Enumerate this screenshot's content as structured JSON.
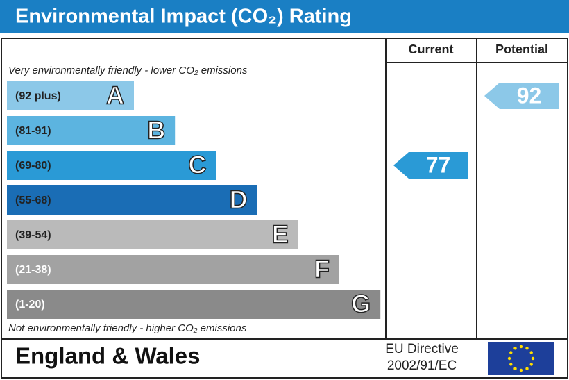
{
  "title": "Environmental Impact (CO₂) Rating",
  "headers": {
    "current": "Current",
    "potential": "Potential"
  },
  "top_note": "Very environmentally friendly - lower CO₂ emissions",
  "bottom_note": "Not environmentally friendly - higher CO₂ emissions",
  "bands": [
    {
      "range": "(92 plus)",
      "letter": "A",
      "color": "#8cc8e8"
    },
    {
      "range": "(81-91)",
      "letter": "B",
      "color": "#5cb4e0"
    },
    {
      "range": "(69-80)",
      "letter": "C",
      "color": "#2a9ad6"
    },
    {
      "range": "(55-68)",
      "letter": "D",
      "color": "#1a6db5"
    },
    {
      "range": "(39-54)",
      "letter": "E",
      "color": "#bababa"
    },
    {
      "range": "(21-38)",
      "letter": "F",
      "color": "#a2a2a2"
    },
    {
      "range": "(1-20)",
      "letter": "G",
      "color": "#8a8a8a"
    }
  ],
  "current": 77,
  "potential": 92,
  "footer": {
    "region": "England & Wales",
    "directive_line1": "EU Directive",
    "directive_line2": "2002/91/EC"
  }
}
